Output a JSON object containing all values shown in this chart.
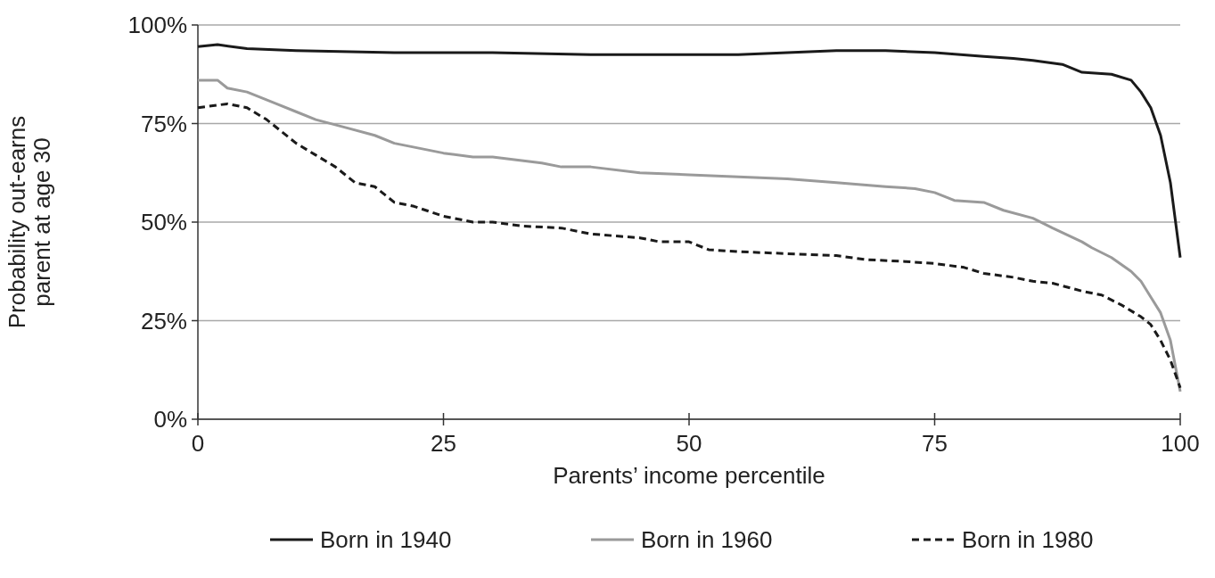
{
  "chart_data": {
    "type": "line",
    "xlabel": "Parents’ income percentile",
    "ylabel": "Probability out-earns\nparent at age 30",
    "xlim": [
      0,
      100
    ],
    "xticks": [
      0,
      25,
      50,
      75,
      100
    ],
    "ylim": [
      0,
      100
    ],
    "yticks": [
      {
        "value": 0,
        "label": "0%"
      },
      {
        "value": 25,
        "label": "25%"
      },
      {
        "value": 50,
        "label": "50%"
      },
      {
        "value": 75,
        "label": "75%"
      },
      {
        "value": 100,
        "label": "100%"
      }
    ],
    "grid": "y",
    "legend": "bottom",
    "series": [
      {
        "name": "Born in 1940",
        "color": "#1a1a1a",
        "line_style": "solid",
        "x": [
          0,
          2,
          5,
          10,
          20,
          30,
          40,
          50,
          55,
          60,
          65,
          70,
          75,
          80,
          83,
          85,
          88,
          90,
          93,
          95,
          96,
          97,
          98,
          99,
          100
        ],
        "values": [
          94.5,
          95,
          94,
          93.5,
          93,
          93,
          92.5,
          92.5,
          92.5,
          93,
          93.5,
          93.5,
          93,
          92,
          91.5,
          91,
          90,
          88,
          87.5,
          86,
          83,
          79,
          72,
          60,
          41
        ]
      },
      {
        "name": "Born in 1960",
        "color": "#9a9a9a",
        "line_style": "solid",
        "x": [
          0,
          2,
          3,
          5,
          8,
          10,
          12,
          15,
          18,
          20,
          25,
          28,
          30,
          35,
          37,
          40,
          45,
          50,
          55,
          60,
          65,
          70,
          73,
          75,
          77,
          80,
          82,
          85,
          87,
          90,
          91,
          93,
          95,
          96,
          97,
          98,
          99,
          100
        ],
        "values": [
          86,
          86,
          84,
          83,
          80,
          78,
          76,
          74,
          72,
          70,
          67.5,
          66.5,
          66.5,
          65,
          64,
          64,
          62.5,
          62,
          61.5,
          61,
          60,
          59,
          58.5,
          57.5,
          55.5,
          55,
          53,
          51,
          48.5,
          45,
          43.5,
          41,
          37.5,
          35,
          31,
          27,
          20,
          7
        ]
      },
      {
        "name": "Born in 1980",
        "color": "#1a1a1a",
        "line_style": "dashed",
        "x": [
          0,
          3,
          5,
          7,
          10,
          12,
          14,
          16,
          18,
          20,
          22,
          25,
          28,
          30,
          33,
          37,
          40,
          45,
          47,
          50,
          52,
          55,
          60,
          65,
          68,
          72,
          75,
          78,
          80,
          83,
          85,
          87,
          90,
          92,
          94,
          96,
          97,
          98,
          99,
          100
        ],
        "values": [
          79,
          80,
          79,
          76,
          70,
          67,
          64,
          60,
          59,
          55,
          54,
          51.5,
          50,
          50,
          49,
          48.5,
          47,
          46,
          45,
          45,
          43,
          42.5,
          42,
          41.5,
          40.5,
          40,
          39.5,
          38.5,
          37,
          36,
          35,
          34.5,
          32.5,
          31.5,
          29,
          26,
          24,
          20,
          15,
          8
        ]
      }
    ]
  }
}
